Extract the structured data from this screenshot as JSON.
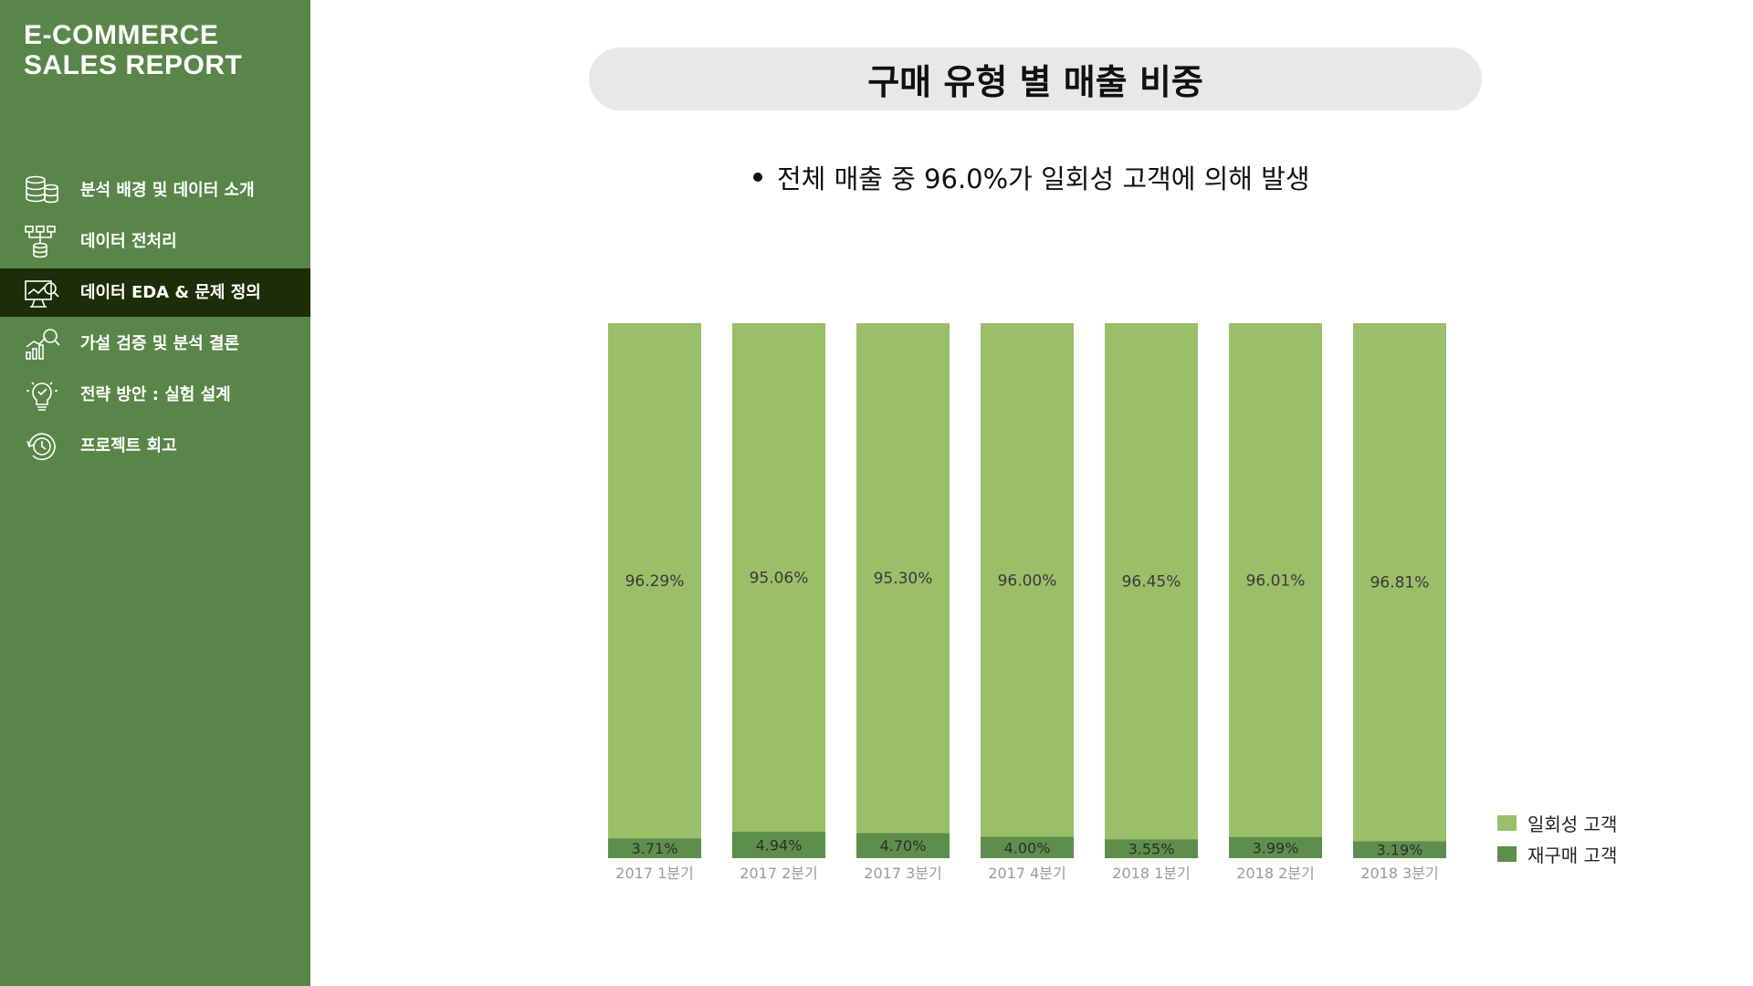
{
  "sidebar": {
    "brand_line1": "E-COMMERCE",
    "brand_line2": "SALES REPORT",
    "items": [
      {
        "label": "분석 배경 및 데이터 소개",
        "icon": "database-stack-icon"
      },
      {
        "label": "데이터 전처리",
        "icon": "data-merge-icon"
      },
      {
        "label": "데이터 EDA & 문제 정의",
        "icon": "analytics-monitor-icon",
        "active": true
      },
      {
        "label": "가설 검증 및 분석 결론",
        "icon": "chart-search-icon"
      },
      {
        "label": "전략 방안 : 실험 설계",
        "icon": "lightbulb-check-icon"
      },
      {
        "label": "프로젝트 회고",
        "icon": "clock-cycle-icon"
      }
    ]
  },
  "main": {
    "title": "구매 유형 별 매출 비중",
    "bullet": "전체 매출 중 96.0%가 일회성 고객에 의해 발생"
  },
  "colors": {
    "sidebar": "#5a8549",
    "active_item": "#1b2e08",
    "one_time": "#9bbe69",
    "repeat": "#5e8e4c"
  },
  "chart_data": {
    "type": "bar",
    "stacked": true,
    "normalized": true,
    "categories": [
      "2017 1분기",
      "2017 2분기",
      "2017 3분기",
      "2017 4분기",
      "2018 1분기",
      "2018 2분기",
      "2018 3분기"
    ],
    "series": [
      {
        "name": "재구매 고객",
        "values": [
          3.71,
          4.94,
          4.7,
          4.0,
          3.55,
          3.99,
          3.19
        ],
        "labels": [
          "3.71%",
          "4.94%",
          "4.70%",
          "4.00%",
          "3.55%",
          "3.99%",
          "3.19%"
        ],
        "color": "#5e8e4c"
      },
      {
        "name": "일회성 고객",
        "values": [
          96.29,
          95.06,
          95.3,
          96.0,
          96.45,
          96.01,
          96.81
        ],
        "labels": [
          "96.29%",
          "95.06%",
          "95.30%",
          "96.00%",
          "96.45%",
          "96.01%",
          "96.81%"
        ],
        "color": "#9bbe69"
      }
    ],
    "ylim": [
      0,
      100
    ],
    "legend_position": "bottom-right",
    "legend": [
      "일회성 고객",
      "재구매 고객"
    ]
  }
}
